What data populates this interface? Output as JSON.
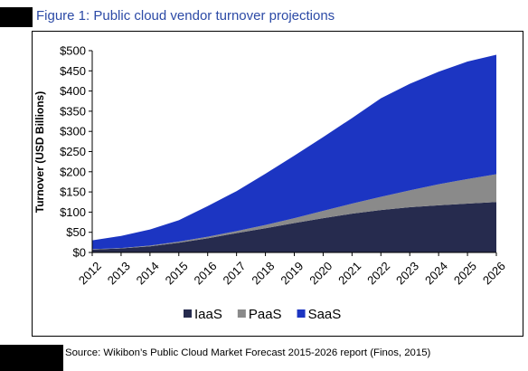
{
  "figure_title": "Figure 1: Public cloud vendor turnover projections",
  "source": "Source: Wikibon’s Public Cloud Market Forecast 2015-2026 report (Finos, 2015)",
  "chart_data": {
    "type": "area",
    "stacked": true,
    "title": "",
    "xlabel": "",
    "ylabel": "Turnover (USD Billions)",
    "x": [
      "2012",
      "2013",
      "2014",
      "2015",
      "2016",
      "2017",
      "2018",
      "2019",
      "2020",
      "2021",
      "2022",
      "2023",
      "2024",
      "2025",
      "2026"
    ],
    "ylim": [
      0,
      500
    ],
    "yticks": [
      0,
      50,
      100,
      150,
      200,
      250,
      300,
      350,
      400,
      450,
      500
    ],
    "ytick_labels": [
      "$0",
      "$50",
      "$100",
      "$150",
      "$200",
      "$250",
      "$300",
      "$350",
      "$400",
      "$450",
      "$500"
    ],
    "grid": false,
    "legend_position": "bottom",
    "series": [
      {
        "name": "IaaS",
        "color": "#262b4e",
        "values": [
          7,
          10,
          15,
          24,
          35,
          48,
          60,
          73,
          85,
          96,
          105,
          112,
          117,
          121,
          125
        ]
      },
      {
        "name": "PaaS",
        "color": "#8a8a8a",
        "values": [
          1,
          1,
          2,
          3,
          4,
          5,
          8,
          12,
          18,
          25,
          33,
          42,
          52,
          61,
          69
        ]
      },
      {
        "name": "SaaS",
        "color": "#1c35c2",
        "values": [
          22,
          30,
          40,
          53,
          76,
          99,
          127,
          155,
          183,
          212,
          244,
          264,
          279,
          291,
          296
        ]
      }
    ]
  }
}
